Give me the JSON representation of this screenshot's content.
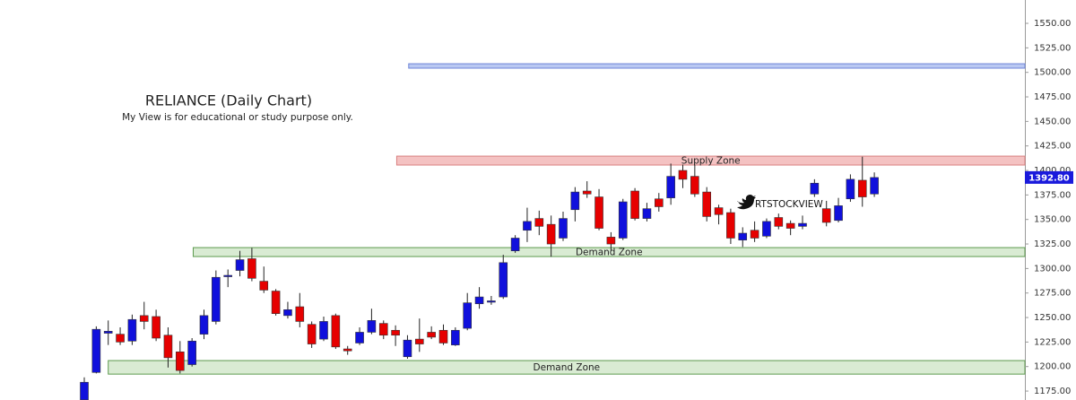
{
  "chart_data": {
    "type": "candlestick",
    "title": "RELIANCE (Daily Chart)",
    "subtitle": "My View is for educational or study purpose only.",
    "watermark": "RTSTOCKVIEW",
    "up_color": "#1010dc",
    "down_color": "#e60000",
    "ylim": [
      1165.9,
      1573.8
    ],
    "yticks": [
      {
        "value": 1175,
        "label": "1175.00"
      },
      {
        "value": 1200,
        "label": "1200.00"
      },
      {
        "value": 1225,
        "label": "1225.00"
      },
      {
        "value": 1250,
        "label": "1250.00"
      },
      {
        "value": 1275,
        "label": "1275.00"
      },
      {
        "value": 1300,
        "label": "1300.00"
      },
      {
        "value": 1325,
        "label": "1325.00"
      },
      {
        "value": 1350,
        "label": "1350.00"
      },
      {
        "value": 1375,
        "label": "1375.00"
      },
      {
        "value": 1400,
        "label": "1400.00"
      },
      {
        "value": 1425,
        "label": "1425.00"
      },
      {
        "value": 1450,
        "label": "1450.00"
      },
      {
        "value": 1475,
        "label": "1475.00"
      },
      {
        "value": 1500,
        "label": "1500.00"
      },
      {
        "value": 1525,
        "label": "1525.00"
      },
      {
        "value": 1550,
        "label": "1550.00"
      }
    ],
    "last_price": {
      "value": 1392.8,
      "label": "1392.80",
      "color": "#1a1adc"
    },
    "zones": [
      {
        "label": "Supply Zone",
        "low": 1405.5,
        "high": 1414.6,
        "x0": 26.1,
        "color": "#f4c2c2",
        "border": "#d98080"
      },
      {
        "color": "#b9c8f2",
        "border": "#6f86d8",
        "low": 1504.3,
        "high": 1508.8,
        "x0": 27.1
      },
      {
        "label": "Demand Zone",
        "low": 1312.2,
        "high": 1321.3,
        "x0": 9.1,
        "color": "#d9ebd3",
        "border": "#5d9a4e"
      },
      {
        "label": "Demand Zone",
        "low": 1192.3,
        "high": 1206.1,
        "x0": 2,
        "color": "#d9ebd3",
        "border": "#5d9a4e"
      }
    ],
    "open": [
      1166,
      1194,
      1234,
      1233,
      1226,
      1252,
      1251,
      1232,
      1215,
      1202,
      1233,
      1246,
      1292,
      1298,
      1310,
      1287,
      1277,
      1252,
      1261,
      1243,
      1228,
      1252,
      1218,
      1224,
      1235,
      1244,
      1237,
      1210,
      1228,
      1235,
      1237,
      1222,
      1239,
      1264,
      1266,
      1271,
      1318,
      1339,
      1351,
      1345,
      1331,
      1360,
      1379,
      1373,
      1332,
      1331,
      1379,
      1351,
      1371,
      1372,
      1400,
      1394,
      1378,
      1362,
      1357,
      1329,
      1339,
      1333,
      1352,
      1346,
      1343,
      1376,
      1361,
      1349,
      1371,
      1390,
      1376
    ],
    "high": [
      1189,
      1241,
      1247,
      1240,
      1253,
      1266,
      1258,
      1240,
      1226,
      1229,
      1258,
      1298,
      1299,
      1318,
      1321,
      1302,
      1279,
      1266,
      1275,
      1246,
      1251,
      1254,
      1221,
      1240,
      1259,
      1247,
      1242,
      1232,
      1249,
      1241,
      1243,
      1240,
      1275,
      1281,
      1272,
      1314,
      1334,
      1362,
      1359,
      1354,
      1358,
      1383,
      1389,
      1381,
      1337,
      1371,
      1382,
      1367,
      1377,
      1407,
      1406,
      1406,
      1383,
      1365,
      1361,
      1342,
      1348,
      1351,
      1356,
      1349,
      1354,
      1391,
      1369,
      1372,
      1396,
      1414,
      1398
    ],
    "low": [
      1166,
      1193,
      1222,
      1222,
      1222,
      1238,
      1226,
      1199,
      1193,
      1200,
      1228,
      1243,
      1281,
      1292,
      1287,
      1275,
      1252,
      1249,
      1240,
      1219,
      1226,
      1218,
      1212,
      1222,
      1233,
      1228,
      1221,
      1208,
      1215,
      1228,
      1222,
      1221,
      1237,
      1259,
      1263,
      1269,
      1316,
      1327,
      1334,
      1312,
      1328,
      1348,
      1372,
      1339,
      1318,
      1329,
      1349,
      1348,
      1358,
      1365,
      1382,
      1373,
      1348,
      1345,
      1325,
      1322,
      1327,
      1331,
      1340,
      1334,
      1340,
      1373,
      1343,
      1347,
      1368,
      1363,
      1373
    ],
    "close": [
      1184,
      1238,
      1236,
      1225,
      1248,
      1246,
      1229,
      1209,
      1196,
      1226,
      1252,
      1291,
      1293,
      1309,
      1290,
      1278,
      1254,
      1258,
      1246,
      1223,
      1246,
      1220,
      1216,
      1235,
      1247,
      1232,
      1232,
      1227,
      1223,
      1230,
      1224,
      1237,
      1265,
      1271,
      1267,
      1306,
      1331,
      1348,
      1343,
      1325,
      1351,
      1378,
      1376,
      1341,
      1325,
      1368,
      1351,
      1361,
      1363,
      1394,
      1391,
      1376,
      1353,
      1355,
      1331,
      1336,
      1331,
      1348,
      1343,
      1341,
      1346,
      1387,
      1347,
      1364,
      1391,
      1373,
      1392.8
    ]
  }
}
